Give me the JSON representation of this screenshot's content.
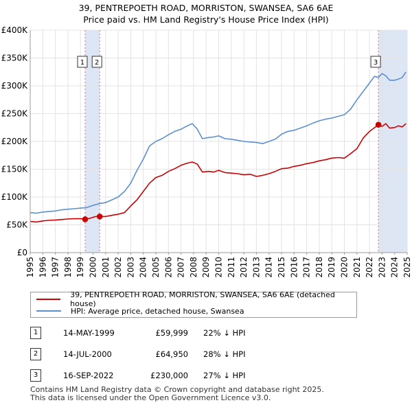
{
  "title_line1": "39, PENTREPOETH ROAD, MORRISTON, SWANSEA, SA6 6AE",
  "title_line2": "Price paid vs. HM Land Registry's House Price Index (HPI)",
  "chart_data": {
    "type": "line",
    "title": "39, PENTREPOETH ROAD, MORRISTON, SWANSEA, SA6 6AE",
    "subtitle": "Price paid vs. HM Land Registry's House Price Index (HPI)",
    "xlim": [
      1995,
      2025
    ],
    "ylim": [
      0,
      400000
    ],
    "x_ticks": [
      "1995",
      "1996",
      "1997",
      "1998",
      "1999",
      "2000",
      "2001",
      "2002",
      "2003",
      "2004",
      "2005",
      "2006",
      "2007",
      "2008",
      "2009",
      "2010",
      "2011",
      "2012",
      "2013",
      "2014",
      "2015",
      "2016",
      "2017",
      "2018",
      "2019",
      "2020",
      "2021",
      "2022",
      "2023",
      "2024",
      "2025"
    ],
    "y_ticks": [
      {
        "value": 0,
        "label": "£0"
      },
      {
        "value": 50000,
        "label": "£50K"
      },
      {
        "value": 100000,
        "label": "£100K"
      },
      {
        "value": 150000,
        "label": "£150K"
      },
      {
        "value": 200000,
        "label": "£200K"
      },
      {
        "value": 250000,
        "label": "£250K"
      },
      {
        "value": 300000,
        "label": "£300K"
      },
      {
        "value": 350000,
        "label": "£350K"
      },
      {
        "value": 400000,
        "label": "£400K"
      }
    ],
    "series": [
      {
        "name": "39, PENTREPOETH ROAD, MORRISTON, SWANSEA, SA6 6AE (detached house)",
        "color": "#cc0000",
        "x": [
          1995.0,
          1995.5,
          1996.0,
          1996.5,
          1997.0,
          1997.5,
          1998.0,
          1998.5,
          1999.0,
          1999.37,
          1999.8,
          2000.2,
          2000.53,
          2001.0,
          2001.5,
          2002.0,
          2002.5,
          2003.0,
          2003.5,
          2004.0,
          2004.5,
          2005.0,
          2005.5,
          2006.0,
          2006.5,
          2007.0,
          2007.5,
          2007.9,
          2008.3,
          2008.7,
          2009.2,
          2009.6,
          2010.0,
          2010.5,
          2011.0,
          2011.5,
          2012.0,
          2012.5,
          2013.0,
          2013.5,
          2014.0,
          2014.5,
          2015.0,
          2015.5,
          2016.0,
          2016.5,
          2017.0,
          2017.5,
          2018.0,
          2018.5,
          2019.0,
          2019.5,
          2020.0,
          2020.5,
          2021.0,
          2021.5,
          2022.0,
          2022.3,
          2022.71,
          2023.0,
          2023.3,
          2023.6,
          2024.0,
          2024.3,
          2024.6,
          2024.9
        ],
        "values": [
          56000,
          55000,
          57000,
          58000,
          58500,
          59500,
          60500,
          61000,
          61000,
          59999,
          62000,
          65000,
          64950,
          65000,
          67000,
          69000,
          72000,
          84000,
          95000,
          110000,
          125000,
          135000,
          139000,
          146000,
          151000,
          157000,
          161000,
          163000,
          159000,
          145000,
          146000,
          145000,
          148000,
          144000,
          143000,
          142000,
          140000,
          141000,
          137000,
          139000,
          142000,
          146000,
          151000,
          152000,
          155000,
          157000,
          160000,
          162000,
          165000,
          167000,
          170000,
          171000,
          170000,
          178000,
          187000,
          206000,
          218000,
          223000,
          230000,
          227000,
          232000,
          224000,
          225000,
          228000,
          226000,
          232000
        ]
      },
      {
        "name": "HPI: Average price, detached house, Swansea",
        "color": "#5b8fcf",
        "x": [
          1995.0,
          1995.5,
          1996.0,
          1996.5,
          1997.0,
          1997.5,
          1998.0,
          1998.5,
          1999.0,
          1999.5,
          2000.0,
          2000.5,
          2001.0,
          2001.5,
          2002.0,
          2002.5,
          2003.0,
          2003.5,
          2004.0,
          2004.5,
          2005.0,
          2005.5,
          2006.0,
          2006.5,
          2007.0,
          2007.5,
          2007.9,
          2008.3,
          2008.7,
          2009.2,
          2009.6,
          2010.0,
          2010.5,
          2011.0,
          2011.5,
          2012.0,
          2012.5,
          2013.0,
          2013.5,
          2014.0,
          2014.5,
          2015.0,
          2015.5,
          2016.0,
          2016.5,
          2017.0,
          2017.5,
          2018.0,
          2018.5,
          2019.0,
          2019.5,
          2020.0,
          2020.5,
          2021.0,
          2021.5,
          2022.0,
          2022.4,
          2022.71,
          2023.0,
          2023.3,
          2023.6,
          2024.0,
          2024.3,
          2024.6,
          2024.9
        ],
        "values": [
          72000,
          71000,
          73000,
          74000,
          75000,
          77000,
          78000,
          79000,
          80000,
          81000,
          85000,
          88000,
          90000,
          95000,
          100000,
          110000,
          125000,
          148000,
          168000,
          192000,
          200000,
          205000,
          212000,
          218000,
          222000,
          228000,
          232000,
          222000,
          205000,
          207000,
          208000,
          210000,
          205000,
          204000,
          202000,
          200000,
          199000,
          198000,
          196000,
          200000,
          204000,
          213000,
          218000,
          220000,
          224000,
          228000,
          233000,
          237000,
          240000,
          242000,
          245000,
          248000,
          258000,
          275000,
          290000,
          305000,
          317000,
          315000,
          322000,
          318000,
          310000,
          310000,
          312000,
          315000,
          325000
        ]
      }
    ],
    "sales": [
      {
        "label": "1",
        "date": "14-MAY-1999",
        "price": "£59,999",
        "hpi": "22% ↓ HPI",
        "x": 1999.37,
        "value": 59999
      },
      {
        "label": "2",
        "date": "14-JUL-2000",
        "price": "£64,950",
        "hpi": "28% ↓ HPI",
        "x": 2000.53,
        "value": 64950
      },
      {
        "label": "3",
        "date": "16-SEP-2022",
        "price": "£230,000",
        "hpi": "27% ↓ HPI",
        "x": 2022.71,
        "value": 230000
      }
    ],
    "shaded_ranges": [
      [
        1999.37,
        2000.53
      ],
      [
        2022.71,
        2025.0
      ]
    ]
  },
  "legend": {
    "property": "39, PENTREPOETH ROAD, MORRISTON, SWANSEA, SA6 6AE (detached house)",
    "hpi": "HPI: Average price, detached house, Swansea",
    "property_color": "#cc0000",
    "hpi_color": "#5b8fcf"
  },
  "footer_line1": "Contains HM Land Registry data © Crown copyright and database right 2025.",
  "footer_line2": "This data is licensed under the Open Government Licence v3.0."
}
